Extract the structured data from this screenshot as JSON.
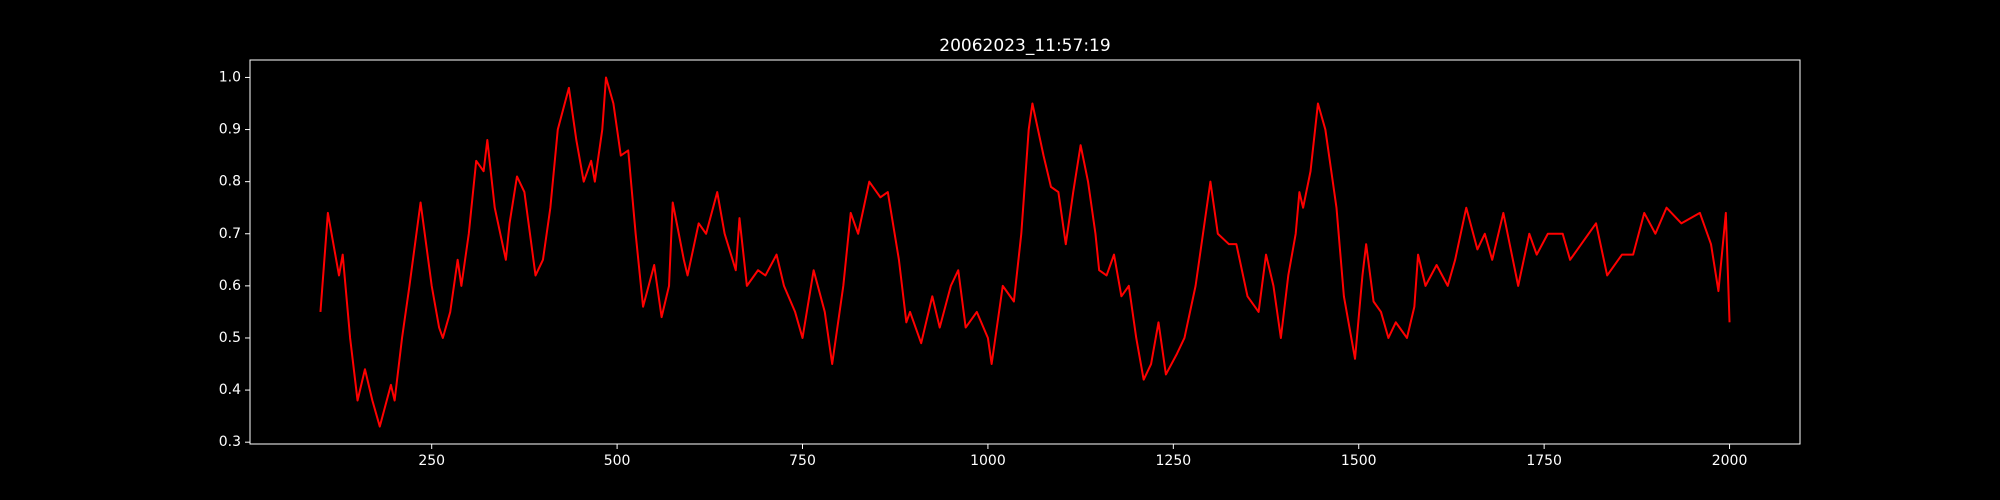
{
  "chart_data": {
    "type": "line",
    "title": "20062023_11:57:19",
    "x": [
      100,
      110,
      125,
      130,
      140,
      150,
      160,
      170,
      180,
      195,
      200,
      210,
      220,
      235,
      250,
      260,
      265,
      275,
      285,
      290,
      300,
      310,
      320,
      325,
      335,
      350,
      355,
      365,
      375,
      390,
      400,
      410,
      420,
      435,
      445,
      455,
      465,
      470,
      480,
      485,
      495,
      505,
      515,
      525,
      535,
      550,
      560,
      570,
      575,
      590,
      595,
      610,
      620,
      635,
      645,
      660,
      665,
      675,
      690,
      700,
      715,
      725,
      740,
      750,
      765,
      780,
      790,
      805,
      815,
      825,
      840,
      855,
      865,
      880,
      890,
      895,
      910,
      925,
      935,
      950,
      960,
      970,
      985,
      1000,
      1005,
      1020,
      1035,
      1045,
      1055,
      1060,
      1075,
      1085,
      1095,
      1105,
      1115,
      1125,
      1135,
      1145,
      1150,
      1160,
      1170,
      1180,
      1190,
      1200,
      1210,
      1220,
      1230,
      1240,
      1255,
      1265,
      1280,
      1290,
      1300,
      1310,
      1325,
      1335,
      1350,
      1365,
      1375,
      1385,
      1395,
      1405,
      1415,
      1420,
      1425,
      1435,
      1445,
      1455,
      1465,
      1470,
      1480,
      1495,
      1505,
      1510,
      1520,
      1530,
      1540,
      1550,
      1565,
      1575,
      1580,
      1590,
      1605,
      1620,
      1630,
      1645,
      1660,
      1670,
      1680,
      1695,
      1715,
      1730,
      1740,
      1755,
      1775,
      1785,
      1800,
      1820,
      1835,
      1855,
      1870,
      1885,
      1900,
      1915,
      1935,
      1960,
      1975,
      1985,
      1995,
      2000
    ],
    "series": [
      {
        "color": "#ff0000",
        "values": [
          0.55,
          0.74,
          0.62,
          0.66,
          0.5,
          0.38,
          0.44,
          0.38,
          0.33,
          0.41,
          0.38,
          0.5,
          0.6,
          0.76,
          0.6,
          0.52,
          0.5,
          0.55,
          0.65,
          0.6,
          0.7,
          0.84,
          0.82,
          0.88,
          0.75,
          0.65,
          0.72,
          0.81,
          0.78,
          0.62,
          0.65,
          0.75,
          0.9,
          0.98,
          0.88,
          0.8,
          0.84,
          0.8,
          0.9,
          1.0,
          0.95,
          0.85,
          0.86,
          0.7,
          0.56,
          0.64,
          0.54,
          0.6,
          0.76,
          0.65,
          0.62,
          0.72,
          0.7,
          0.78,
          0.7,
          0.63,
          0.73,
          0.6,
          0.63,
          0.62,
          0.66,
          0.6,
          0.55,
          0.5,
          0.63,
          0.55,
          0.45,
          0.6,
          0.74,
          0.7,
          0.8,
          0.77,
          0.78,
          0.65,
          0.53,
          0.55,
          0.49,
          0.58,
          0.52,
          0.6,
          0.63,
          0.52,
          0.55,
          0.5,
          0.45,
          0.6,
          0.57,
          0.7,
          0.9,
          0.95,
          0.85,
          0.79,
          0.78,
          0.68,
          0.78,
          0.87,
          0.8,
          0.7,
          0.63,
          0.62,
          0.66,
          0.58,
          0.6,
          0.5,
          0.42,
          0.45,
          0.53,
          0.43,
          0.47,
          0.5,
          0.6,
          0.7,
          0.8,
          0.7,
          0.68,
          0.68,
          0.58,
          0.55,
          0.66,
          0.6,
          0.5,
          0.62,
          0.7,
          0.78,
          0.75,
          0.82,
          0.95,
          0.9,
          0.8,
          0.75,
          0.58,
          0.46,
          0.62,
          0.68,
          0.57,
          0.55,
          0.5,
          0.53,
          0.5,
          0.56,
          0.66,
          0.6,
          0.64,
          0.6,
          0.65,
          0.75,
          0.67,
          0.7,
          0.65,
          0.74,
          0.6,
          0.7,
          0.66,
          0.7,
          0.7,
          0.65,
          0.68,
          0.72,
          0.62,
          0.66,
          0.66,
          0.74,
          0.7,
          0.75,
          0.72,
          0.74,
          0.68,
          0.59,
          0.74,
          0.53
        ]
      }
    ],
    "xlim": [
      5,
      2095
    ],
    "ylim": [
      0.2965,
      1.0335
    ],
    "xticks": [
      250,
      500,
      750,
      1000,
      1250,
      1500,
      1750,
      2000
    ],
    "yticks": [
      0.3,
      0.4,
      0.5,
      0.6,
      0.7,
      0.8,
      0.9,
      {
        "value": 1,
        "label": "1.0"
      }
    ]
  }
}
